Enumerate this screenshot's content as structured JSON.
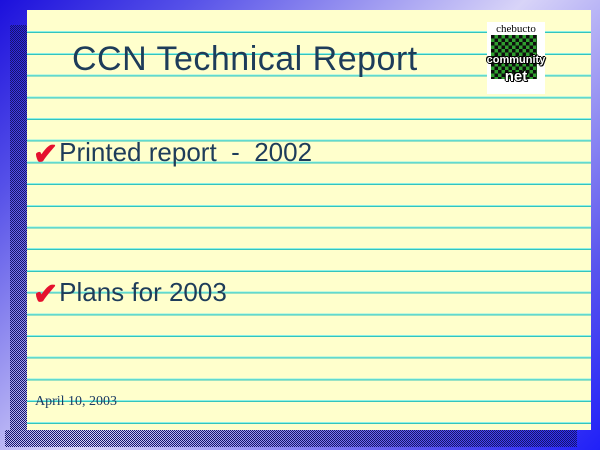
{
  "slide": {
    "title": "CCN Technical Report",
    "bullets": [
      {
        "check_glyph": "✔",
        "text": "Printed report  -  2002"
      },
      {
        "check_glyph": "✔",
        "text": "Plans for 2003"
      }
    ],
    "date": "April 10, 2003",
    "logo": {
      "line_top": "chebucto",
      "line_middle": "community",
      "line_bottom": "net"
    },
    "colors": {
      "paper_background": "#ffffcc",
      "ruled_line": "#34c4bc",
      "title_text": "#1e3c5a",
      "check_red": "#e5112e",
      "shadow_navy": "#16166b",
      "background_blue_dark": "#1c10dc",
      "background_blue_light": "#d8d4f8",
      "logo_green": "#2f9e2f"
    }
  }
}
